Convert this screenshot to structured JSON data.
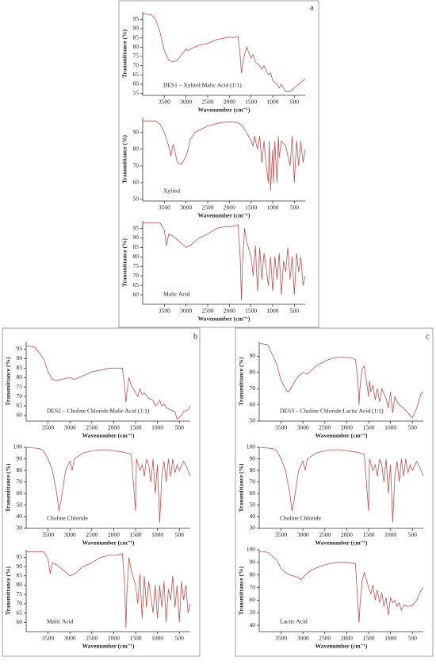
{
  "panels": [
    "a",
    "b",
    "c"
  ],
  "chart_data": [
    {
      "type": "line",
      "annotation": "DES1 – Xylitol:Malic Acid (1:1)",
      "xlabel": "Wavenumber (cm⁻¹)",
      "ylabel": "Transmittance (%)",
      "color": "#c0504d",
      "xlim": [
        4000,
        250
      ],
      "ylim": [
        54,
        99
      ],
      "xticks": [
        3500,
        3000,
        2500,
        2000,
        1500,
        1000,
        500
      ],
      "yticks": [
        55,
        60,
        65,
        70,
        75,
        80,
        85,
        90,
        95
      ],
      "x": [
        4000,
        3800,
        3700,
        3600,
        3500,
        3400,
        3300,
        3200,
        3100,
        3000,
        2950,
        2900,
        2700,
        2500,
        2300,
        2100,
        2000,
        1900,
        1800,
        1750,
        1720,
        1700,
        1650,
        1600,
        1500,
        1450,
        1400,
        1300,
        1250,
        1200,
        1100,
        1050,
        1000,
        900,
        850,
        800,
        700,
        600,
        500,
        400,
        300,
        250
      ],
      "values": [
        98,
        97.5,
        95,
        88,
        78,
        73,
        72,
        73,
        76,
        79,
        78,
        79,
        81,
        82,
        84,
        85,
        85.5,
        85,
        86,
        75,
        66,
        70,
        76,
        80,
        74,
        76,
        72,
        70,
        68,
        70,
        65,
        66,
        62,
        60,
        58,
        60,
        56,
        56,
        58,
        60,
        62,
        63
      ]
    },
    {
      "type": "line",
      "annotation": "Xylitol",
      "xlabel": "Wavenumber (cm⁻¹)",
      "ylabel": "Transmittance (%)",
      "color": "#c0504d",
      "xlim": [
        4000,
        250
      ],
      "ylim": [
        49,
        99
      ],
      "xticks": [
        3500,
        3000,
        2500,
        2000,
        1500,
        1000,
        500
      ],
      "yticks": [
        50,
        60,
        70,
        80,
        90
      ],
      "x": [
        4000,
        3700,
        3600,
        3500,
        3400,
        3350,
        3300,
        3250,
        3200,
        3100,
        3000,
        2950,
        2900,
        2800,
        2500,
        2200,
        2000,
        1800,
        1700,
        1600,
        1500,
        1450,
        1420,
        1350,
        1300,
        1250,
        1200,
        1150,
        1100,
        1080,
        1050,
        1000,
        980,
        950,
        900,
        870,
        850,
        800,
        700,
        600,
        550,
        500,
        450,
        400,
        350,
        300,
        250
      ],
      "values": [
        97,
        97,
        95,
        90,
        82,
        76,
        83,
        78,
        72,
        71,
        76,
        80,
        86,
        90,
        94,
        96,
        96.5,
        96,
        94,
        90,
        85,
        82,
        88,
        80,
        88,
        72,
        85,
        70,
        60,
        85,
        55,
        80,
        60,
        85,
        60,
        88,
        75,
        85,
        82,
        70,
        88,
        60,
        85,
        70,
        85,
        72,
        80
      ]
    },
    {
      "type": "line",
      "annotation": "Malic Acid",
      "xlabel": "Wavenumber (cm⁻¹)",
      "ylabel": "Transmittance (%)",
      "color": "#c0504d",
      "xlim": [
        4000,
        250
      ],
      "ylim": [
        55,
        99
      ],
      "xticks": [
        3500,
        3000,
        2500,
        2000,
        1500,
        1000,
        500
      ],
      "yticks": [
        60,
        65,
        70,
        75,
        80,
        85,
        90,
        95
      ],
      "x": [
        4000,
        3600,
        3500,
        3450,
        3400,
        3300,
        3200,
        3100,
        3000,
        2900,
        2700,
        2500,
        2300,
        2100,
        1950,
        1800,
        1750,
        1720,
        1700,
        1650,
        1600,
        1500,
        1450,
        1400,
        1350,
        1300,
        1250,
        1200,
        1100,
        1050,
        1000,
        950,
        900,
        850,
        800,
        750,
        700,
        650,
        600,
        550,
        500,
        450,
        400,
        350,
        300,
        250
      ],
      "values": [
        98,
        98,
        94,
        86,
        92,
        91,
        89,
        87,
        85,
        86,
        90,
        92,
        95,
        96,
        96,
        97,
        80,
        57,
        75,
        95,
        88,
        80,
        70,
        86,
        62,
        85,
        68,
        82,
        65,
        80,
        62,
        80,
        68,
        82,
        60,
        78,
        72,
        85,
        68,
        80,
        60,
        82,
        72,
        80,
        65,
        70
      ]
    },
    {
      "type": "line",
      "annotation": "DES2 – Choline Chloride:Malic Acid (1:1)",
      "xlabel": "Wavenumber (cm⁻¹)",
      "ylabel": "Transmittance (%)",
      "color": "#c0504d",
      "xlim": [
        4000,
        250
      ],
      "ylim": [
        57,
        99
      ],
      "xticks": [
        3500,
        3000,
        2500,
        2000,
        1500,
        1000,
        500
      ],
      "yticks": [
        60,
        65,
        70,
        75,
        80,
        85,
        90,
        95
      ],
      "x": [
        4000,
        3800,
        3600,
        3500,
        3400,
        3300,
        3200,
        3100,
        3000,
        2900,
        2700,
        2500,
        2300,
        2100,
        1900,
        1800,
        1750,
        1720,
        1700,
        1650,
        1600,
        1500,
        1450,
        1400,
        1350,
        1300,
        1200,
        1100,
        1050,
        1000,
        950,
        900,
        850,
        800,
        700,
        600,
        550,
        500,
        450,
        400,
        300,
        250
      ],
      "values": [
        97,
        96,
        90,
        83,
        79,
        78.5,
        79,
        79.5,
        80,
        79,
        81,
        83,
        84,
        85,
        85,
        85,
        75,
        67,
        72,
        80,
        76,
        72,
        70,
        74,
        71,
        72,
        69,
        68,
        65,
        66,
        68,
        65,
        66,
        64,
        63,
        62,
        58,
        59,
        60,
        62,
        63,
        65
      ]
    },
    {
      "type": "line",
      "annotation": "Choline Chloride",
      "xlabel": "Wavenumber (cm⁻¹)",
      "ylabel": "Transmittance (%)",
      "color": "#c0504d",
      "xlim": [
        4000,
        250
      ],
      "ylim": [
        30,
        100
      ],
      "xticks": [
        3500,
        3000,
        2500,
        2000,
        1500,
        1000,
        500
      ],
      "yticks": [
        30,
        40,
        50,
        60,
        70,
        80,
        90,
        100
      ],
      "x": [
        4000,
        3700,
        3600,
        3500,
        3400,
        3300,
        3250,
        3200,
        3100,
        3000,
        2950,
        2900,
        2700,
        2500,
        2200,
        2000,
        1800,
        1700,
        1600,
        1500,
        1480,
        1400,
        1350,
        1300,
        1250,
        1200,
        1150,
        1100,
        1050,
        1000,
        950,
        900,
        850,
        800,
        750,
        700,
        650,
        600,
        550,
        500,
        400,
        300,
        250
      ],
      "values": [
        100,
        99,
        97,
        90,
        80,
        60,
        45,
        55,
        80,
        88,
        80,
        90,
        95,
        97,
        98,
        97,
        96,
        95,
        94,
        45,
        90,
        80,
        85,
        75,
        90,
        85,
        70,
        90,
        60,
        85,
        35,
        75,
        88,
        70,
        90,
        75,
        90,
        78,
        85,
        80,
        88,
        80,
        75
      ]
    },
    {
      "type": "line",
      "annotation": "Malic Acid",
      "xlabel": "Wavenumber (cm⁻¹)",
      "ylabel": "Transmittance (%)",
      "color": "#c0504d",
      "xlim": [
        4000,
        250
      ],
      "ylim": [
        55,
        99
      ],
      "xticks": [
        3500,
        3000,
        2500,
        2000,
        1500,
        1000,
        500
      ],
      "yticks": [
        60,
        65,
        70,
        75,
        80,
        85,
        90,
        95
      ],
      "x": [
        4000,
        3600,
        3500,
        3450,
        3400,
        3300,
        3200,
        3100,
        3000,
        2900,
        2700,
        2500,
        2300,
        2100,
        1950,
        1800,
        1750,
        1720,
        1700,
        1650,
        1600,
        1500,
        1450,
        1400,
        1350,
        1300,
        1250,
        1200,
        1100,
        1050,
        1000,
        950,
        900,
        850,
        800,
        750,
        700,
        650,
        600,
        550,
        500,
        450,
        400,
        350,
        300,
        250
      ],
      "values": [
        98,
        98,
        94,
        86,
        92,
        91,
        89,
        87,
        85,
        86,
        90,
        92,
        95,
        96,
        96,
        97,
        80,
        57,
        75,
        95,
        88,
        80,
        70,
        86,
        62,
        85,
        68,
        82,
        65,
        80,
        62,
        80,
        68,
        82,
        60,
        78,
        72,
        85,
        68,
        80,
        60,
        82,
        72,
        80,
        65,
        70
      ]
    },
    {
      "type": "line",
      "annotation": "DES3 – Choline Chloride:Lactic Acid (1:1)",
      "xlabel": "Wavenumber (cm⁻¹)",
      "ylabel": "Transmittance (%)",
      "color": "#c0504d",
      "xlim": [
        4000,
        250
      ],
      "ylim": [
        50,
        99
      ],
      "xticks": [
        3500,
        3000,
        2500,
        2000,
        1500,
        1000,
        500
      ],
      "yticks": [
        50,
        60,
        70,
        80,
        90
      ],
      "x": [
        4000,
        3800,
        3600,
        3500,
        3400,
        3350,
        3300,
        3200,
        3100,
        3000,
        2900,
        2700,
        2500,
        2300,
        2100,
        1900,
        1800,
        1750,
        1720,
        1700,
        1650,
        1600,
        1500,
        1480,
        1450,
        1400,
        1350,
        1300,
        1250,
        1200,
        1100,
        1050,
        1000,
        950,
        900,
        850,
        800,
        700,
        600,
        500,
        450,
        400,
        300,
        250
      ],
      "values": [
        98,
        97,
        85,
        75,
        70,
        68,
        69,
        74,
        78,
        80,
        79,
        84,
        87,
        89,
        89.5,
        89,
        88,
        76,
        60,
        70,
        82,
        84,
        65,
        75,
        68,
        72,
        63,
        70,
        62,
        70,
        64,
        58,
        68,
        55,
        65,
        62,
        60,
        58,
        55,
        52,
        55,
        58,
        67,
        68
      ]
    },
    {
      "type": "line",
      "annotation": "Choline Chloride",
      "xlabel": "Wavenumber (cm⁻¹)",
      "ylabel": "Transmittance (%)",
      "color": "#c0504d",
      "xlim": [
        4000,
        250
      ],
      "ylim": [
        30,
        100
      ],
      "xticks": [
        3500,
        3000,
        2500,
        2000,
        1500,
        1000,
        500
      ],
      "yticks": [
        30,
        40,
        50,
        60,
        70,
        80,
        90,
        100
      ],
      "x": [
        4000,
        3700,
        3600,
        3500,
        3400,
        3300,
        3250,
        3200,
        3100,
        3000,
        2950,
        2900,
        2700,
        2500,
        2200,
        2000,
        1800,
        1700,
        1600,
        1500,
        1480,
        1400,
        1350,
        1300,
        1250,
        1200,
        1150,
        1100,
        1050,
        1000,
        950,
        900,
        850,
        800,
        750,
        700,
        650,
        600,
        550,
        500,
        400,
        300,
        250
      ],
      "values": [
        100,
        99,
        97,
        90,
        80,
        60,
        45,
        55,
        80,
        88,
        80,
        90,
        95,
        97,
        98,
        97,
        96,
        95,
        94,
        45,
        90,
        80,
        85,
        75,
        90,
        85,
        70,
        90,
        60,
        85,
        35,
        75,
        88,
        70,
        90,
        75,
        90,
        78,
        85,
        80,
        88,
        80,
        75
      ]
    },
    {
      "type": "line",
      "annotation": "Lactic Acid",
      "xlabel": "Wavenumber (cm⁻¹)",
      "ylabel": "Transmittance (%)",
      "color": "#c0504d",
      "xlim": [
        4000,
        250
      ],
      "ylim": [
        35,
        100
      ],
      "xticks": [
        3500,
        3000,
        2500,
        2000,
        1500,
        1000,
        500
      ],
      "yticks": [
        40,
        50,
        60,
        70,
        80,
        90,
        100
      ],
      "x": [
        4000,
        3800,
        3600,
        3500,
        3400,
        3300,
        3200,
        3100,
        3050,
        3000,
        2950,
        2800,
        2600,
        2400,
        2200,
        2000,
        1800,
        1750,
        1720,
        1700,
        1650,
        1600,
        1500,
        1450,
        1400,
        1350,
        1300,
        1250,
        1200,
        1150,
        1100,
        1050,
        1000,
        950,
        900,
        850,
        800,
        750,
        700,
        600,
        500,
        400,
        300,
        250
      ],
      "values": [
        99,
        98,
        92,
        85,
        82,
        80,
        79,
        78,
        76,
        78,
        80,
        84,
        87,
        89,
        90,
        90,
        89,
        60,
        42,
        55,
        75,
        82,
        70,
        65,
        72,
        60,
        68,
        58,
        66,
        55,
        62,
        48,
        62,
        58,
        60,
        55,
        58,
        52,
        56,
        55,
        56,
        60,
        68,
        70
      ]
    }
  ]
}
